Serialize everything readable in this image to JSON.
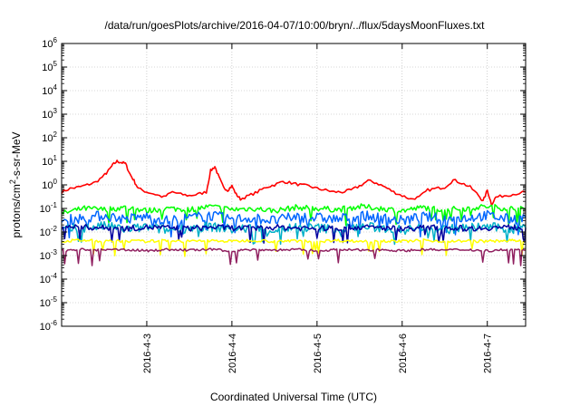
{
  "chart_data": {
    "type": "line",
    "title": "/data/run/goesPlots/archive/2016-04-07/10:00/bryn/../flux/5daysMoonFluxes.txt",
    "xlabel": "Coordinated Universal Time (UTC)",
    "ylabel": "protons/cm²-s-sr-MeV",
    "ylabel_base": "protons/cm",
    "ylabel_sup": "2",
    "ylabel_rest": "-s-sr-MeV",
    "yscale": "log",
    "ylim": [
      1e-06,
      1000000
    ],
    "x_unit": "days (2016-04-02 00:00 UTC = 0)",
    "xlim": [
      0.0,
      5.45
    ],
    "yticks": [
      {
        "exp": "-6",
        "value": 1e-06
      },
      {
        "exp": "-5",
        "value": 1e-05
      },
      {
        "exp": "-4",
        "value": 0.0001
      },
      {
        "exp": "-3",
        "value": 0.001
      },
      {
        "exp": "-2",
        "value": 0.01
      },
      {
        "exp": "-1",
        "value": 0.1
      },
      {
        "exp": "0",
        "value": 1
      },
      {
        "exp": "1",
        "value": 10
      },
      {
        "exp": "2",
        "value": 100
      },
      {
        "exp": "3",
        "value": 1000
      },
      {
        "exp": "4",
        "value": 10000
      },
      {
        "exp": "5",
        "value": 100000
      },
      {
        "exp": "6",
        "value": 1000000
      }
    ],
    "xticks": [
      {
        "label": "2016-4-3",
        "x": 1
      },
      {
        "label": "2016-4-4",
        "x": 2
      },
      {
        "label": "2016-4-5",
        "x": 3
      },
      {
        "label": "2016-4-6",
        "x": 4
      },
      {
        "label": "2016-4-7",
        "x": 5
      }
    ],
    "grid": true,
    "legend": "none",
    "series": [
      {
        "color": "#ff0000",
        "x": [
          0,
          0.1,
          0.2,
          0.3,
          0.4,
          0.5,
          0.55,
          0.6,
          0.65,
          0.7,
          0.75,
          0.8,
          0.85,
          0.9,
          1.0,
          1.1,
          1.2,
          1.3,
          1.4,
          1.5,
          1.6,
          1.7,
          1.75,
          1.8,
          1.85,
          1.9,
          1.95,
          2.0,
          2.05,
          2.1,
          2.2,
          2.3,
          2.4,
          2.5,
          2.6,
          2.7,
          2.8,
          2.9,
          3.0,
          3.1,
          3.2,
          3.3,
          3.4,
          3.5,
          3.6,
          3.7,
          3.8,
          3.9,
          4.0,
          4.1,
          4.2,
          4.3,
          4.4,
          4.5,
          4.6,
          4.7,
          4.8,
          4.9,
          4.95,
          5.0,
          5.05,
          5.1,
          5.2,
          5.3,
          5.45
        ],
        "values": [
          0.5,
          0.7,
          0.8,
          1.0,
          1.3,
          2.5,
          4,
          7,
          10,
          9,
          8,
          3,
          1.5,
          0.7,
          0.5,
          0.4,
          0.3,
          0.5,
          0.4,
          0.35,
          0.4,
          0.5,
          4,
          6,
          2,
          0.8,
          0.6,
          0.9,
          0.4,
          0.25,
          0.35,
          0.5,
          0.8,
          1.0,
          1.4,
          1.2,
          1.0,
          0.9,
          0.7,
          0.6,
          0.5,
          0.5,
          0.6,
          0.9,
          1.5,
          1.2,
          0.8,
          0.5,
          0.35,
          0.25,
          0.3,
          0.6,
          0.7,
          0.8,
          1.6,
          1.2,
          0.8,
          0.35,
          0.2,
          0.6,
          0.15,
          0.3,
          0.35,
          0.4,
          0.5
        ]
      },
      {
        "color": "#00ff00",
        "x": [
          0,
          0.25,
          0.5,
          0.75,
          1.0,
          1.25,
          1.5,
          1.75,
          2.0,
          2.25,
          2.5,
          2.75,
          3.0,
          3.25,
          3.5,
          3.75,
          4.0,
          4.25,
          4.5,
          4.75,
          5.0,
          5.25,
          5.45
        ],
        "values": [
          0.06,
          0.1,
          0.09,
          0.11,
          0.08,
          0.1,
          0.09,
          0.12,
          0.09,
          0.1,
          0.08,
          0.11,
          0.1,
          0.09,
          0.12,
          0.1,
          0.08,
          0.11,
          0.09,
          0.1,
          0.12,
          0.1,
          0.09
        ]
      },
      {
        "color": "#0066ff",
        "x": [
          0,
          0.25,
          0.5,
          0.75,
          1.0,
          1.25,
          1.5,
          1.75,
          2.0,
          2.25,
          2.5,
          2.75,
          3.0,
          3.25,
          3.5,
          3.75,
          4.0,
          4.25,
          4.5,
          4.75,
          5.0,
          5.25,
          5.45
        ],
        "values": [
          0.03,
          0.04,
          0.05,
          0.035,
          0.045,
          0.03,
          0.04,
          0.05,
          0.035,
          0.04,
          0.03,
          0.045,
          0.04,
          0.035,
          0.05,
          0.04,
          0.03,
          0.045,
          0.035,
          0.04,
          0.05,
          0.035,
          0.04
        ]
      },
      {
        "color": "#00b0c8",
        "x": [
          0,
          0.25,
          0.5,
          0.75,
          1.0,
          1.25,
          1.5,
          1.75,
          2.0,
          2.25,
          2.5,
          2.75,
          3.0,
          3.25,
          3.5,
          3.75,
          4.0,
          4.25,
          4.5,
          4.75,
          5.0,
          5.25,
          5.45
        ],
        "values": [
          0.012,
          0.015,
          0.018,
          0.013,
          0.016,
          0.012,
          0.015,
          0.017,
          0.013,
          0.015,
          0.012,
          0.016,
          0.015,
          0.013,
          0.017,
          0.015,
          0.012,
          0.016,
          0.013,
          0.015,
          0.017,
          0.013,
          0.015
        ]
      },
      {
        "color": "#0000a0",
        "x": [
          0,
          0.25,
          0.5,
          0.75,
          1.0,
          1.25,
          1.5,
          1.75,
          2.0,
          2.25,
          2.5,
          2.75,
          3.0,
          3.25,
          3.5,
          3.75,
          4.0,
          4.25,
          4.5,
          4.75,
          5.0,
          5.25,
          5.45
        ],
        "values": [
          0.018,
          0.016,
          0.015,
          0.014,
          0.016,
          0.015,
          0.014,
          0.016,
          0.015,
          0.014,
          0.016,
          0.015,
          0.014,
          0.015,
          0.016,
          0.015,
          0.014,
          0.015,
          0.016,
          0.014,
          0.015,
          0.016,
          0.015
        ]
      },
      {
        "color": "#ffff00",
        "x": [
          0,
          0.25,
          0.5,
          0.75,
          1.0,
          1.25,
          1.5,
          1.75,
          2.0,
          2.25,
          2.5,
          2.75,
          3.0,
          3.25,
          3.5,
          3.75,
          4.0,
          4.25,
          4.5,
          4.75,
          5.0,
          5.25,
          5.45
        ],
        "values": [
          0.004,
          0.0045,
          0.004,
          0.0042,
          0.004,
          0.0044,
          0.004,
          0.0043,
          0.004,
          0.0045,
          0.004,
          0.0042,
          0.004,
          0.0044,
          0.004,
          0.0043,
          0.004,
          0.0045,
          0.004,
          0.0042,
          0.004,
          0.0044,
          0.004
        ]
      },
      {
        "color": "#902060",
        "x": [
          0,
          0.25,
          0.5,
          0.75,
          1.0,
          1.25,
          1.5,
          1.75,
          2.0,
          2.25,
          2.5,
          2.75,
          3.0,
          3.25,
          3.5,
          3.75,
          4.0,
          4.25,
          4.5,
          4.75,
          5.0,
          5.25,
          5.45
        ],
        "values": [
          0.0016,
          0.0018,
          0.0017,
          0.0018,
          0.0016,
          0.0018,
          0.0017,
          0.0018,
          0.0016,
          0.0018,
          0.0017,
          0.0018,
          0.0016,
          0.0018,
          0.0017,
          0.0018,
          0.0016,
          0.0018,
          0.0017,
          0.0018,
          0.0016,
          0.0018,
          0.0017
        ]
      }
    ]
  }
}
